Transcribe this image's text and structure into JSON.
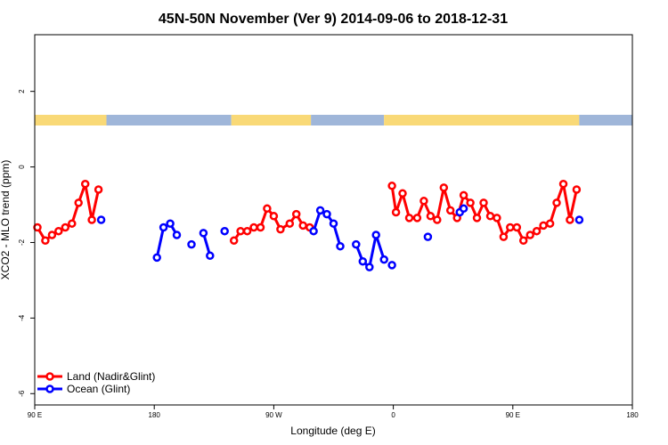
{
  "chart_data": {
    "type": "line",
    "title": "45N-50N November (Ver 9)   2014-09-06 to 2018-12-31",
    "xlabel": "Longitude (deg E)",
    "ylabel": "XCO2 - MLO trend (ppm)",
    "x_ticks": [
      {
        "value": 90,
        "label": "90 E"
      },
      {
        "value": 180,
        "label": "180"
      },
      {
        "value": 270,
        "label": "90 W"
      },
      {
        "value": 360,
        "label": "0"
      },
      {
        "value": 450,
        "label": "90 E"
      },
      {
        "value": 540,
        "label": "180"
      }
    ],
    "y_ticks": [
      {
        "value": 2,
        "label": "2"
      },
      {
        "value": 0,
        "label": "0"
      },
      {
        "value": -2,
        "label": "-2"
      },
      {
        "value": -4,
        "label": "-4"
      },
      {
        "value": -6,
        "label": "-6"
      }
    ],
    "xlim": [
      90,
      540
    ],
    "ylim": [
      -6.3,
      3.5
    ],
    "grid": false,
    "legend_position": "bottom-left",
    "landmask": {
      "description_free": true,
      "colors": {
        "land": "#f9d977",
        "ocean": "#9fb6d9"
      },
      "segments": [
        {
          "type": "land",
          "from": 90,
          "to": 144
        },
        {
          "type": "ocean",
          "from": 144,
          "to": 238
        },
        {
          "type": "land",
          "from": 238,
          "to": 298
        },
        {
          "type": "ocean",
          "from": 298,
          "to": 353
        },
        {
          "type": "land",
          "from": 353,
          "to": 500
        },
        {
          "type": "ocean",
          "from": 500,
          "to": 540
        }
      ]
    },
    "series": [
      {
        "name": "Land (Nadir&Glint)",
        "color": "#ff0000",
        "segments": [
          [
            [
              92,
              -1.6
            ],
            [
              98,
              -1.95
            ],
            [
              103,
              -1.8
            ],
            [
              108,
              -1.7
            ],
            [
              113,
              -1.6
            ],
            [
              118,
              -1.5
            ],
            [
              123,
              -0.95
            ],
            [
              128,
              -0.45
            ],
            [
              133,
              -1.4
            ],
            [
              138,
              -0.6
            ]
          ],
          [
            [
              240,
              -1.95
            ],
            [
              245,
              -1.7
            ],
            [
              250,
              -1.7
            ],
            [
              255,
              -1.6
            ],
            [
              260,
              -1.6
            ],
            [
              265,
              -1.1
            ],
            [
              270,
              -1.3
            ],
            [
              275,
              -1.65
            ],
            [
              282,
              -1.5
            ],
            [
              287,
              -1.25
            ],
            [
              292,
              -1.55
            ],
            [
              297,
              -1.6
            ]
          ],
          [
            [
              359,
              -0.5
            ],
            [
              362,
              -1.2
            ],
            [
              367,
              -0.7
            ],
            [
              372,
              -1.35
            ],
            [
              378,
              -1.35
            ],
            [
              383,
              -0.9
            ],
            [
              388,
              -1.3
            ],
            [
              393,
              -1.4
            ],
            [
              398,
              -0.55
            ],
            [
              403,
              -1.15
            ],
            [
              408,
              -1.35
            ],
            [
              413,
              -0.75
            ],
            [
              418,
              -0.95
            ],
            [
              423,
              -1.35
            ],
            [
              428,
              -0.95
            ],
            [
              433,
              -1.3
            ],
            [
              438,
              -1.35
            ],
            [
              443,
              -1.85
            ],
            [
              448,
              -1.6
            ],
            [
              453,
              -1.6
            ],
            [
              458,
              -1.95
            ],
            [
              463,
              -1.8
            ],
            [
              468,
              -1.7
            ],
            [
              473,
              -1.55
            ],
            [
              478,
              -1.5
            ],
            [
              483,
              -0.95
            ],
            [
              488,
              -0.45
            ],
            [
              493,
              -1.4
            ],
            [
              498,
              -0.6
            ]
          ]
        ]
      },
      {
        "name": "Ocean (Glint)",
        "color": "#0000ff",
        "segments": [
          [
            [
              140,
              -1.4
            ]
          ],
          [
            [
              182,
              -2.4
            ],
            [
              187,
              -1.6
            ],
            [
              192,
              -1.5
            ],
            [
              197,
              -1.8
            ]
          ],
          [
            [
              208,
              -2.05
            ]
          ],
          [
            [
              217,
              -1.75
            ],
            [
              222,
              -2.35
            ]
          ],
          [
            [
              233,
              -1.7
            ]
          ],
          [
            [
              300,
              -1.7
            ],
            [
              305,
              -1.15
            ],
            [
              310,
              -1.25
            ],
            [
              315,
              -1.5
            ],
            [
              320,
              -2.1
            ]
          ],
          [
            [
              332,
              -2.05
            ],
            [
              337,
              -2.5
            ],
            [
              342,
              -2.65
            ],
            [
              347,
              -1.8
            ],
            [
              353,
              -2.45
            ]
          ],
          [
            [
              359,
              -2.6
            ]
          ],
          [
            [
              386,
              -1.85
            ]
          ],
          [
            [
              410,
              -1.2
            ],
            [
              413,
              -1.1
            ]
          ],
          [
            [
              500,
              -1.4
            ]
          ]
        ]
      }
    ]
  }
}
